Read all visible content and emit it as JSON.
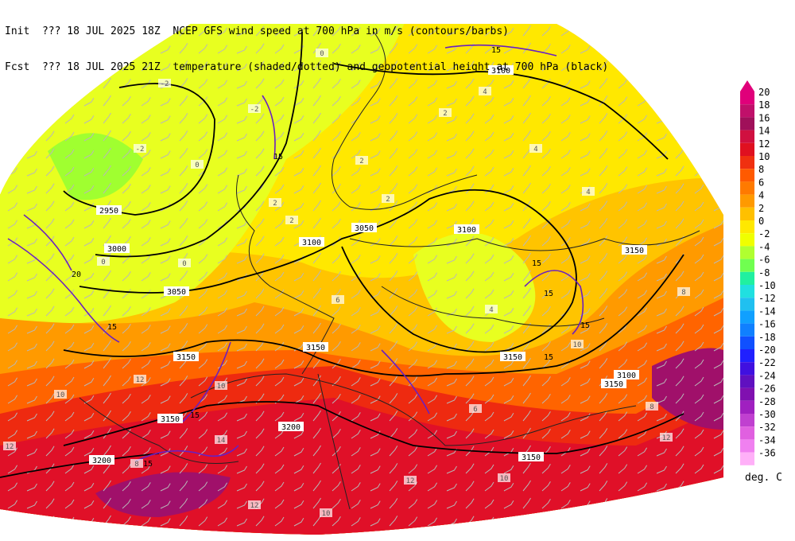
{
  "header": {
    "init_label": "Init",
    "init_value": "??? 18 JUL 2025 18Z",
    "fcst_label": "Fcst",
    "fcst_value": "??? 18 JUL 2025 21Z",
    "line1_desc": "NCEP GFS wind speed at 700 hPa in m/s (contours/barbs)",
    "line2_desc": "temperature (shaded/dotted) and geopotential height at 700 hPa (black)"
  },
  "legend": {
    "unit": "deg. C",
    "levels": [
      "20",
      "18",
      "16",
      "14",
      "12",
      "10",
      "8",
      "6",
      "4",
      "2",
      "0",
      "-2",
      "-4",
      "-6",
      "-8",
      "-10",
      "-12",
      "-14",
      "-16",
      "-18",
      "-20",
      "-22",
      "-24",
      "-26",
      "-28",
      "-30",
      "-32",
      "-34",
      "-36"
    ],
    "colors": [
      "#e0007a",
      "#c0106a",
      "#a0105a",
      "#d01040",
      "#e01020",
      "#f03010",
      "#ff5a00",
      "#ff7a00",
      "#ff9a00",
      "#ffc000",
      "#ffe800",
      "#f0ff00",
      "#b0ff30",
      "#70ff50",
      "#20f0a0",
      "#20e0e0",
      "#20c0f0",
      "#10a0ff",
      "#1080ff",
      "#1050ff",
      "#2020ff",
      "#4010e0",
      "#6010c0",
      "#8010b0",
      "#a020c0",
      "#c040d0",
      "#e060e0",
      "#f080f0",
      "#ffb0f8"
    ]
  },
  "height_labels": [
    "3100",
    "2950",
    "3000",
    "3050",
    "3100",
    "3050",
    "3100",
    "3150",
    "3150",
    "3150",
    "3150",
    "3100",
    "3150",
    "3150",
    "3200",
    "3200",
    "3150"
  ],
  "wind_labels": [
    "15",
    "20",
    "15",
    "15",
    "15",
    "15",
    "15",
    "15",
    "15",
    "15"
  ],
  "temp_labels": [
    "-2",
    "-2",
    "0",
    "0",
    "0",
    "-2",
    "0",
    "2",
    "2",
    "4",
    "4",
    "4",
    "6",
    "2",
    "2",
    "2",
    "4",
    "6",
    "8",
    "8",
    "10",
    "10",
    "12",
    "12",
    "14",
    "12",
    "10",
    "10",
    "12",
    "12",
    "10",
    "8"
  ],
  "map_colors": {
    "cold": "#e8ff20",
    "cool": "#ffe800",
    "mild": "#ffc400",
    "warm": "#ff9a00",
    "hot": "#ff6400",
    "very_hot": "#ee2a10",
    "red": "#e01028",
    "purple": "#a0106a",
    "green": "#a0ff30",
    "deep_green": "#60f050"
  }
}
